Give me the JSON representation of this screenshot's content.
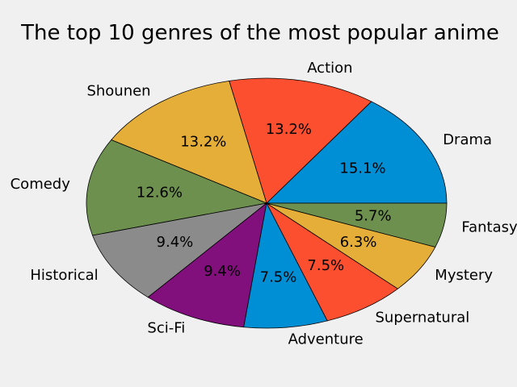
{
  "chart_data": {
    "type": "pie",
    "title": "The top 10 genres of the most popular anime",
    "start_angle_deg": 0,
    "direction": "counterclockwise",
    "slices": [
      {
        "label": "Drama",
        "value": 15.1,
        "pct_label": "15.1%",
        "color": "#008fd5"
      },
      {
        "label": "Action",
        "value": 13.2,
        "pct_label": "13.2%",
        "color": "#fc4f30"
      },
      {
        "label": "Shounen",
        "value": 13.2,
        "pct_label": "13.2%",
        "color": "#e5ae38"
      },
      {
        "label": "Comedy",
        "value": 12.6,
        "pct_label": "12.6%",
        "color": "#6d904f"
      },
      {
        "label": "Historical",
        "value": 9.4,
        "pct_label": "9.4%",
        "color": "#8b8b8b"
      },
      {
        "label": "Sci-Fi",
        "value": 9.4,
        "pct_label": "9.4%",
        "color": "#810f7c"
      },
      {
        "label": "Adventure",
        "value": 7.5,
        "pct_label": "7.5%",
        "color": "#008fd5"
      },
      {
        "label": "Supernatural",
        "value": 7.5,
        "pct_label": "7.5%",
        "color": "#fc4f30"
      },
      {
        "label": "Mystery",
        "value": 6.3,
        "pct_label": "6.3%",
        "color": "#e5ae38"
      },
      {
        "label": "Fantasy",
        "value": 5.7,
        "pct_label": "5.7%",
        "color": "#6d904f"
      }
    ]
  }
}
